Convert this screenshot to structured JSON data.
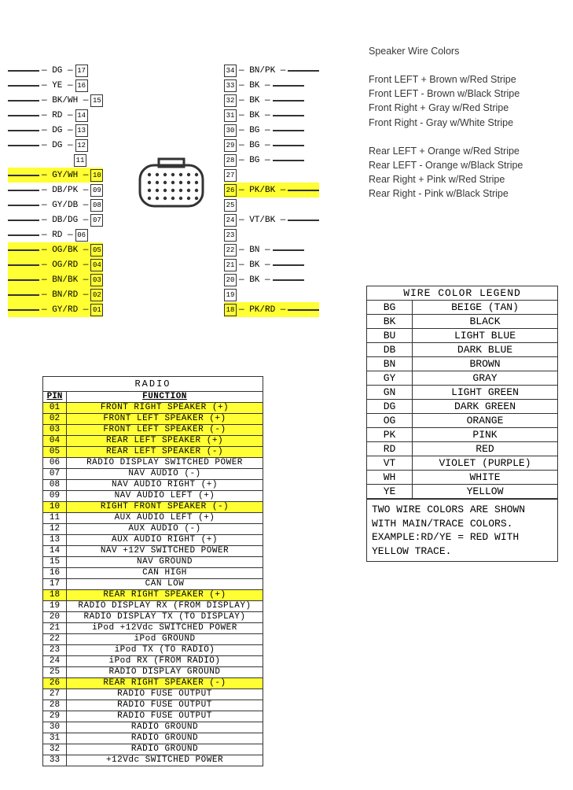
{
  "speaker_text": {
    "title": "Speaker Wire Colors",
    "front": [
      "Front LEFT + Brown w/Red Stripe",
      "Front LEFT - Brown w/Black Stripe",
      "Front Right + Gray w/Red Stripe",
      "Front Right - Gray w/White Stripe"
    ],
    "rear": [
      "Rear LEFT + Orange w/Red Stripe",
      "Rear LEFT - Orange w/Black Stripe",
      "Rear Right + Pink w/Red Stripe",
      "Rear Right - Pink w/Black Stripe"
    ],
    "color": "#373737",
    "font_size": 12.5
  },
  "connector": {
    "left_pins": [
      {
        "num": "17",
        "lbl": "DG",
        "hl": false
      },
      {
        "num": "16",
        "lbl": "YE",
        "hl": false
      },
      {
        "num": "15",
        "lbl": "BK/WH",
        "hl": false
      },
      {
        "num": "14",
        "lbl": "RD",
        "hl": false
      },
      {
        "num": "13",
        "lbl": "DG",
        "hl": false
      },
      {
        "num": "12",
        "lbl": "DG",
        "hl": false
      },
      {
        "num": "11",
        "lbl": "",
        "hl": false
      },
      {
        "num": "10",
        "lbl": "GY/WH",
        "hl": true
      },
      {
        "num": "09",
        "lbl": "DB/PK",
        "hl": false
      },
      {
        "num": "08",
        "lbl": "GY/DB",
        "hl": false
      },
      {
        "num": "07",
        "lbl": "DB/DG",
        "hl": false
      },
      {
        "num": "06",
        "lbl": "RD",
        "hl": false
      },
      {
        "num": "05",
        "lbl": "OG/BK",
        "hl": true
      },
      {
        "num": "04",
        "lbl": "OG/RD",
        "hl": true
      },
      {
        "num": "03",
        "lbl": "BN/BK",
        "hl": true
      },
      {
        "num": "02",
        "lbl": "BN/RD",
        "hl": true
      },
      {
        "num": "01",
        "lbl": "GY/RD",
        "hl": true
      }
    ],
    "right_pins": [
      {
        "num": "34",
        "lbl": "BN/PK",
        "hl": false
      },
      {
        "num": "33",
        "lbl": "BK",
        "hl": false
      },
      {
        "num": "32",
        "lbl": "BK",
        "hl": false
      },
      {
        "num": "31",
        "lbl": "BK",
        "hl": false
      },
      {
        "num": "30",
        "lbl": "BG",
        "hl": false
      },
      {
        "num": "29",
        "lbl": "BG",
        "hl": false
      },
      {
        "num": "28",
        "lbl": "BG",
        "hl": false
      },
      {
        "num": "27",
        "lbl": "",
        "hl": false
      },
      {
        "num": "26",
        "lbl": "PK/BK",
        "hl": true
      },
      {
        "num": "25",
        "lbl": "",
        "hl": false
      },
      {
        "num": "24",
        "lbl": "VT/BK",
        "hl": false
      },
      {
        "num": "23",
        "lbl": "",
        "hl": false
      },
      {
        "num": "22",
        "lbl": "BN",
        "hl": false
      },
      {
        "num": "21",
        "lbl": "BK",
        "hl": false
      },
      {
        "num": "20",
        "lbl": "BK",
        "hl": false
      },
      {
        "num": "19",
        "lbl": "",
        "hl": false
      },
      {
        "num": "18",
        "lbl": "PK/RD",
        "hl": true
      }
    ],
    "hl_color": "#ffff33"
  },
  "radio": {
    "title": "RADIO",
    "columns": [
      "PIN",
      "FUNCTION"
    ],
    "rows": [
      {
        "pin": "01",
        "func": "FRONT RIGHT SPEAKER (+)",
        "hl": true
      },
      {
        "pin": "02",
        "func": "FRONT LEFT SPEAKER (+)",
        "hl": true
      },
      {
        "pin": "03",
        "func": "FRONT LEFT SPEAKER (-)",
        "hl": true
      },
      {
        "pin": "04",
        "func": "REAR LEFT SPEAKER (+)",
        "hl": true
      },
      {
        "pin": "05",
        "func": "REAR LEFT SPEAKER (-)",
        "hl": true
      },
      {
        "pin": "06",
        "func": "RADIO DISPLAY SWITCHED POWER",
        "hl": false
      },
      {
        "pin": "07",
        "func": "NAV AUDIO (-)",
        "hl": false
      },
      {
        "pin": "08",
        "func": "NAV AUDIO RIGHT (+)",
        "hl": false
      },
      {
        "pin": "09",
        "func": "NAV AUDIO LEFT (+)",
        "hl": false
      },
      {
        "pin": "10",
        "func": "RIGHT FRONT SPEAKER (-)",
        "hl": true
      },
      {
        "pin": "11",
        "func": "AUX AUDIO LEFT (+)",
        "hl": false
      },
      {
        "pin": "12",
        "func": "AUX AUDIO (-)",
        "hl": false
      },
      {
        "pin": "13",
        "func": "AUX AUDIO RIGHT (+)",
        "hl": false
      },
      {
        "pin": "14",
        "func": "NAV +12V SWITCHED POWER",
        "hl": false
      },
      {
        "pin": "15",
        "func": "NAV GROUND",
        "hl": false
      },
      {
        "pin": "16",
        "func": "CAN HIGH",
        "hl": false
      },
      {
        "pin": "17",
        "func": "CAN LOW",
        "hl": false
      },
      {
        "pin": "18",
        "func": "REAR RIGHT SPEAKER (+)",
        "hl": true
      },
      {
        "pin": "19",
        "func": "RADIO DISPLAY RX (FROM DISPLAY)",
        "hl": false
      },
      {
        "pin": "20",
        "func": "RADIO DISPLAY TX (TO DISPLAY)",
        "hl": false
      },
      {
        "pin": "21",
        "func": "iPod +12Vdc SWITCHED POWER",
        "hl": false
      },
      {
        "pin": "22",
        "func": "iPod GROUND",
        "hl": false
      },
      {
        "pin": "23",
        "func": "iPod TX (TO RADIO)",
        "hl": false
      },
      {
        "pin": "24",
        "func": "iPod RX (FROM RADIO)",
        "hl": false
      },
      {
        "pin": "25",
        "func": "RADIO DISPLAY GROUND",
        "hl": false
      },
      {
        "pin": "26",
        "func": "REAR RIGHT SPEAKER (-)",
        "hl": true
      },
      {
        "pin": "27",
        "func": "RADIO FUSE OUTPUT",
        "hl": false
      },
      {
        "pin": "28",
        "func": "RADIO FUSE OUTPUT",
        "hl": false
      },
      {
        "pin": "29",
        "func": "RADIO FUSE OUTPUT",
        "hl": false
      },
      {
        "pin": "30",
        "func": "RADIO GROUND",
        "hl": false
      },
      {
        "pin": "31",
        "func": "RADIO GROUND",
        "hl": false
      },
      {
        "pin": "32",
        "func": "RADIO GROUND",
        "hl": false
      },
      {
        "pin": "33",
        "func": "+12Vdc SWITCHED POWER",
        "hl": false
      }
    ],
    "hl_color": "#ffff33"
  },
  "legend": {
    "title": "WIRE COLOR LEGEND",
    "rows": [
      {
        "code": "BG",
        "name": "BEIGE (TAN)"
      },
      {
        "code": "BK",
        "name": "BLACK"
      },
      {
        "code": "BU",
        "name": "LIGHT BLUE"
      },
      {
        "code": "DB",
        "name": "DARK BLUE"
      },
      {
        "code": "BN",
        "name": "BROWN"
      },
      {
        "code": "GY",
        "name": "GRAY"
      },
      {
        "code": "GN",
        "name": "LIGHT GREEN"
      },
      {
        "code": "DG",
        "name": "DARK GREEN"
      },
      {
        "code": "OG",
        "name": "ORANGE"
      },
      {
        "code": "PK",
        "name": "PINK"
      },
      {
        "code": "RD",
        "name": "RED"
      },
      {
        "code": "VT",
        "name": "VIOLET (PURPLE)"
      },
      {
        "code": "WH",
        "name": "WHITE"
      },
      {
        "code": "YE",
        "name": "YELLOW"
      }
    ],
    "note": "TWO WIRE COLORS ARE SHOWN WITH MAIN/TRACE COLORS. EXAMPLE:RD/YE = RED WITH YELLOW TRACE."
  }
}
